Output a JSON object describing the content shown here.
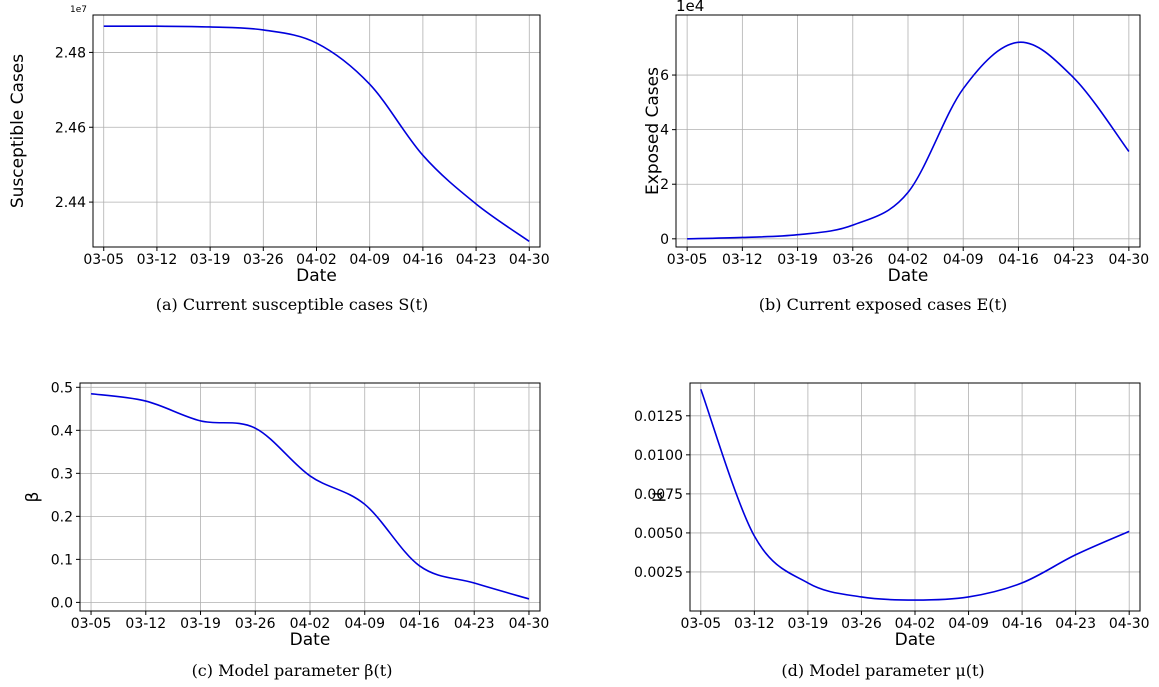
{
  "chart_data": [
    {
      "type": "line",
      "x": [
        "03-05",
        "03-12",
        "03-19",
        "03-26",
        "04-02",
        "04-09",
        "04-16",
        "04-23",
        "04-30"
      ],
      "xlabel": "Date",
      "ylabel": "Susceptible Cases",
      "offset_label": "1e7",
      "yticks": [
        "2.44",
        "2.46",
        "2.48"
      ],
      "ylim": [
        2.428,
        2.49
      ],
      "grid": true,
      "caption": "(a)  Current susceptible cases S(t)",
      "series": [
        {
          "color": "#0000dd",
          "values": [
            2.487,
            2.487,
            2.4868,
            2.486,
            2.4825,
            2.4715,
            2.4525,
            2.4395,
            2.4295
          ]
        }
      ]
    },
    {
      "type": "line",
      "x": [
        "03-05",
        "03-12",
        "03-19",
        "03-26",
        "04-02",
        "04-09",
        "04-16",
        "04-23",
        "04-30"
      ],
      "xlabel": "Date",
      "ylabel": "Exposed Cases",
      "offset_label": "1e4",
      "yticks": [
        "0",
        "2",
        "4",
        "6"
      ],
      "ylim": [
        -0.3,
        8.2
      ],
      "grid": true,
      "caption": "(b)  Current exposed cases E(t)",
      "series": [
        {
          "color": "#0000dd",
          "values": [
            0.0,
            0.05,
            0.15,
            0.5,
            1.7,
            5.5,
            7.2,
            5.9,
            3.2
          ]
        }
      ]
    },
    {
      "type": "line",
      "x": [
        "03-05",
        "03-12",
        "03-19",
        "03-26",
        "04-02",
        "04-09",
        "04-16",
        "04-23",
        "04-30"
      ],
      "xlabel": "Date",
      "ylabel": "β",
      "yticks": [
        "0.0",
        "0.1",
        "0.2",
        "0.3",
        "0.4",
        "0.5"
      ],
      "ylim": [
        -0.02,
        0.51
      ],
      "grid": true,
      "caption": "(c)  Model parameter β(t)",
      "series": [
        {
          "color": "#0000dd",
          "values": [
            0.485,
            0.468,
            0.422,
            0.405,
            0.294,
            0.228,
            0.085,
            0.045,
            0.008
          ]
        }
      ]
    },
    {
      "type": "line",
      "x": [
        "03-05",
        "03-12",
        "03-19",
        "03-26",
        "04-02",
        "04-09",
        "04-16",
        "04-23",
        "04-30"
      ],
      "xlabel": "Date",
      "ylabel": "μ",
      "yticks": [
        "0.0025",
        "0.0050",
        "0.0075",
        "0.0100",
        "0.0125"
      ],
      "ylim": [
        0.0,
        0.0146
      ],
      "grid": true,
      "caption": "(d)  Model parameter μ(t)",
      "series": [
        {
          "color": "#0000dd",
          "values": [
            0.0142,
            0.0048,
            0.0018,
            0.0009,
            0.0007,
            0.0009,
            0.0018,
            0.0036,
            0.0051
          ]
        }
      ]
    }
  ]
}
